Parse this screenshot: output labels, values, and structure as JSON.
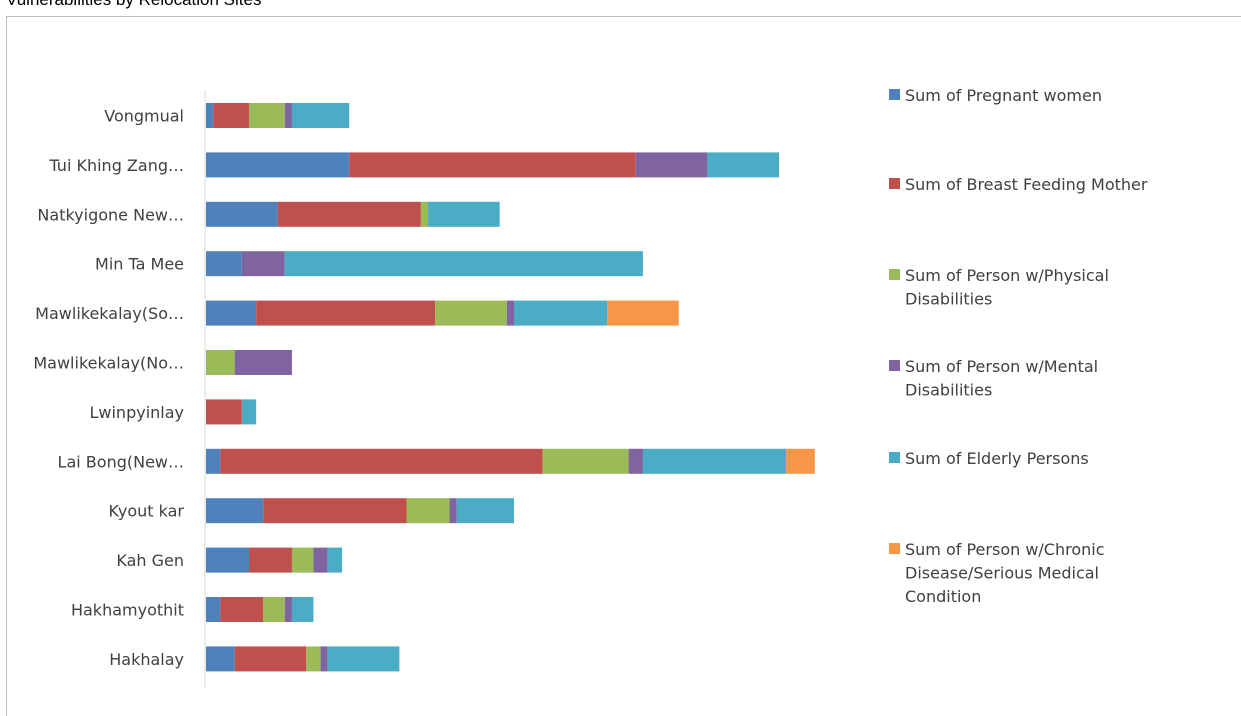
{
  "title": "Vulnerabilities by Relocation Sites",
  "chart_data": {
    "type": "bar",
    "orientation": "horizontal",
    "stacked": true,
    "categories": [
      "Vongmual",
      "Tui Khing Zang…",
      "Natkyigone New…",
      "Min Ta Mee",
      "Mawlikekalay(So…",
      "Mawlikekalay(No…",
      "Lwinpyinlay",
      "Lai Bong(New…",
      "Kyout kar",
      "Kah Gen",
      "Hakhamyothit",
      "Hakhalay"
    ],
    "xlim": [
      0,
      86
    ],
    "grid": false,
    "legend_position": "right",
    "series": [
      {
        "name": "Sum of Pregnant women",
        "color": "#4f81bd",
        "legend_lines": [
          "Sum of Pregnant women"
        ],
        "values": [
          1,
          20,
          10,
          5,
          7,
          0,
          0,
          2,
          8,
          6,
          2,
          4
        ]
      },
      {
        "name": "Sum of Breast Feeding Mother",
        "color": "#c0504d",
        "legend_lines": [
          "Sum of Breast Feeding Mother"
        ],
        "values": [
          5,
          40,
          20,
          0,
          25,
          0,
          5,
          45,
          20,
          6,
          6,
          10
        ]
      },
      {
        "name": "Sum of Person w/Physical Disabilities",
        "color": "#9bbb59",
        "legend_lines": [
          "Sum of Person w/Physical",
          "Disabilities"
        ],
        "values": [
          5,
          0,
          1,
          0,
          10,
          4,
          0,
          12,
          6,
          3,
          3,
          2
        ]
      },
      {
        "name": "Sum of Person w/Mental Disabilities",
        "color": "#8064a2",
        "legend_lines": [
          "Sum of Person w/Mental",
          "Disabilities"
        ],
        "values": [
          1,
          10,
          0,
          6,
          1,
          8,
          0,
          2,
          1,
          2,
          1,
          1
        ]
      },
      {
        "name": "Sum of Elderly Persons",
        "color": "#4bacc6",
        "legend_lines": [
          "Sum of Elderly Persons"
        ],
        "values": [
          8,
          10,
          10,
          50,
          13,
          0,
          2,
          20,
          8,
          2,
          3,
          10
        ]
      },
      {
        "name": "Sum of Person w/Chronic Disease/Serious Medical Condition",
        "color": "#f79646",
        "legend_lines": [
          "Sum of Person w/Chronic",
          "Disease/Serious Medical",
          "Condition"
        ],
        "values": [
          0,
          0,
          0,
          0,
          10,
          0,
          0,
          4,
          0,
          0,
          0,
          0
        ]
      }
    ]
  }
}
